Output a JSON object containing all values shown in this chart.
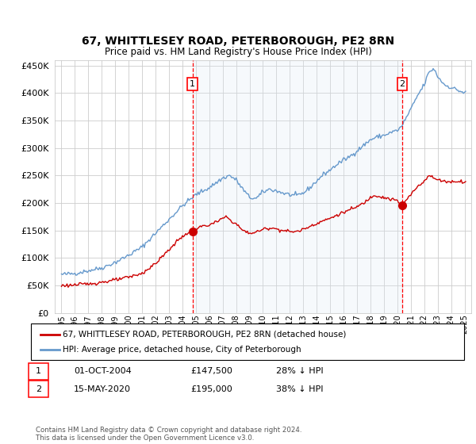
{
  "title": "67, WHITTLESEY ROAD, PETERBOROUGH, PE2 8RN",
  "subtitle": "Price paid vs. HM Land Registry's House Price Index (HPI)",
  "background_color": "#ffffff",
  "plot_bg_color": "#ffffff",
  "ylim": [
    0,
    460000
  ],
  "yticks": [
    0,
    50000,
    100000,
    150000,
    200000,
    250000,
    300000,
    350000,
    400000,
    450000
  ],
  "ytick_labels": [
    "£0",
    "£50K",
    "£100K",
    "£150K",
    "£200K",
    "£250K",
    "£300K",
    "£350K",
    "£400K",
    "£450K"
  ],
  "legend_line1": "67, WHITTLESEY ROAD, PETERBOROUGH, PE2 8RN (detached house)",
  "legend_line2": "HPI: Average price, detached house, City of Peterborough",
  "annotation1_label": "1",
  "annotation1_date": "01-OCT-2004",
  "annotation1_price": "£147,500",
  "annotation1_hpi": "28% ↓ HPI",
  "annotation2_label": "2",
  "annotation2_date": "15-MAY-2020",
  "annotation2_price": "£195,000",
  "annotation2_hpi": "38% ↓ HPI",
  "footnote": "Contains HM Land Registry data © Crown copyright and database right 2024.\nThis data is licensed under the Open Government Licence v3.0.",
  "red_color": "#cc0000",
  "blue_color": "#6699cc",
  "transaction1_x": 2004.75,
  "transaction1_y": 147500,
  "transaction2_x": 2020.37,
  "transaction2_y": 195000,
  "xlim_start": 1994.5,
  "xlim_end": 2025.5,
  "shaded_region_color": "#dce9f7"
}
